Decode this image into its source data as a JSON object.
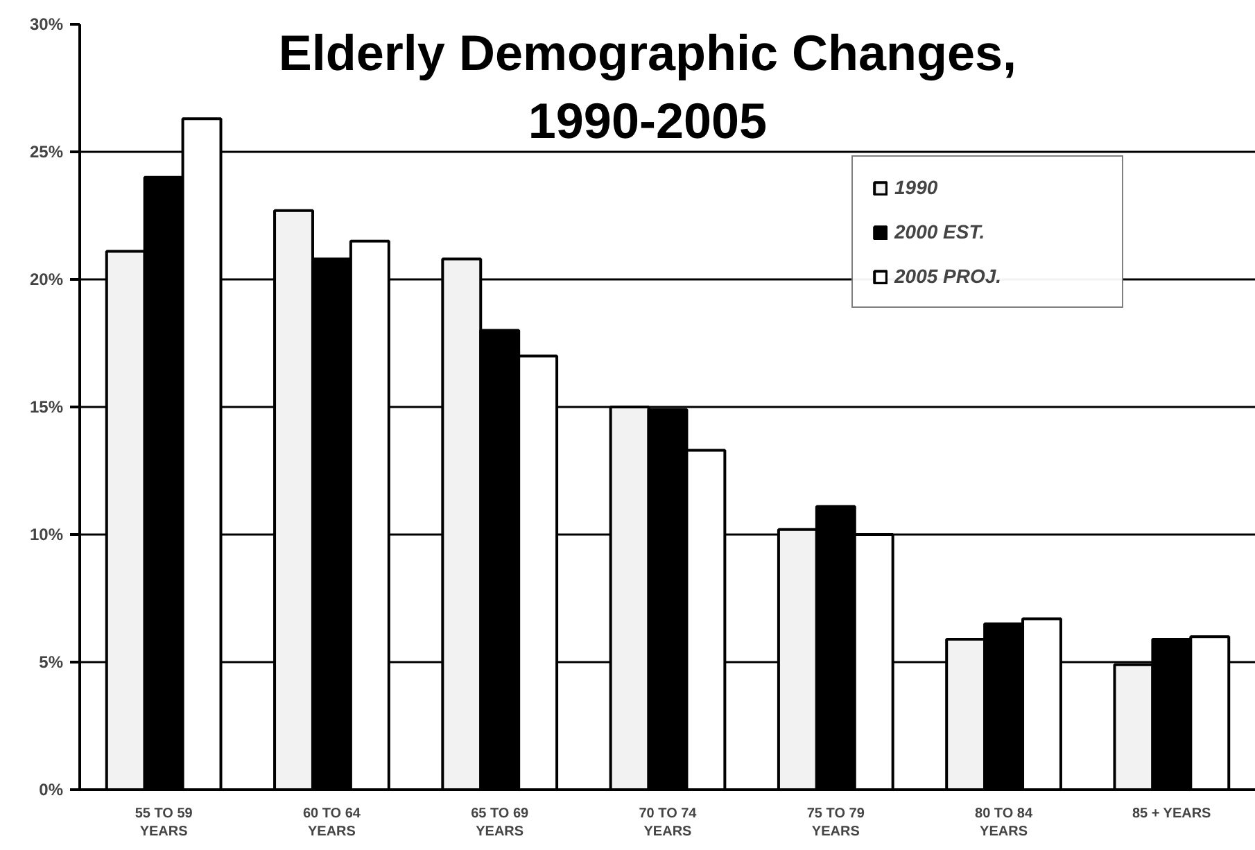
{
  "chart_data": {
    "type": "bar",
    "title": "Elderly Demographic Changes, 1990-2005",
    "categories": [
      "55 TO 59 YEARS",
      "60 TO 64 YEARS",
      "65 TO 69 YEARS",
      "70 TO 74 YEARS",
      "75 TO 79 YEARS",
      "80 TO 84 YEARS",
      "85 + YEARS"
    ],
    "series": [
      {
        "name": "1990",
        "color": "#f2f2f2",
        "values": [
          21.1,
          22.7,
          20.8,
          15.0,
          10.2,
          5.9,
          4.9
        ]
      },
      {
        "name": "2000 EST.",
        "color": "#000000",
        "values": [
          24.0,
          20.8,
          18.0,
          14.9,
          11.1,
          6.5,
          5.9
        ]
      },
      {
        "name": "2005 PROJ.",
        "color": "#ffffff",
        "values": [
          26.3,
          21.5,
          17.0,
          13.3,
          10.0,
          6.7,
          6.0
        ]
      }
    ],
    "ylim": [
      0,
      30
    ],
    "yticks": [
      {
        "value": 0,
        "label": "0%"
      },
      {
        "value": 5,
        "label": "5%"
      },
      {
        "value": 10,
        "label": "10%"
      },
      {
        "value": 15,
        "label": "15%"
      },
      {
        "value": 20,
        "label": "20%"
      },
      {
        "value": 25,
        "label": "25%"
      },
      {
        "value": 30,
        "label": "30%"
      }
    ],
    "grid": "y",
    "legend": "top right"
  }
}
